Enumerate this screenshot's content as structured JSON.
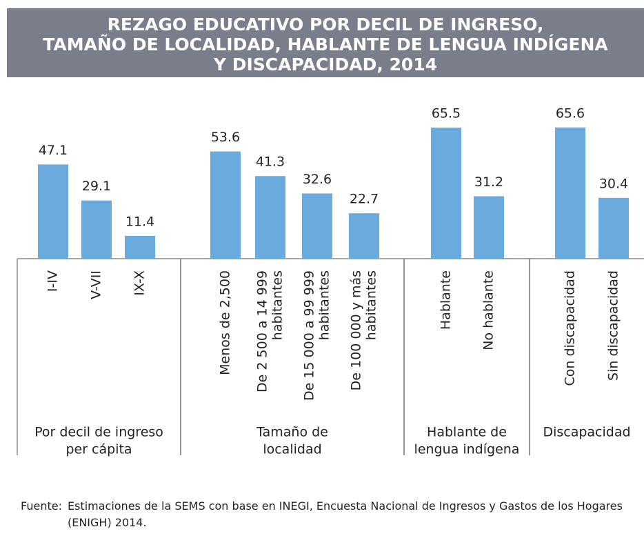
{
  "chart_data": {
    "type": "bar",
    "title": [
      "REZAGO EDUCATIVO POR DECIL DE INGRESO,",
      "TAMAÑO DE LOCALIDAD, HABLANTE DE LENGUA INDÍGENA",
      "Y DISCAPACIDAD, 2014"
    ],
    "color": "#6aaadc",
    "groups": [
      {
        "name": [
          "Por decil de ingreso",
          "per cápita"
        ],
        "categories": [
          [
            "I-IV"
          ],
          [
            "V-VII"
          ],
          [
            "IX-X"
          ]
        ],
        "values": [
          47.1,
          29.1,
          11.4
        ]
      },
      {
        "name": [
          "Tamaño de",
          "localidad"
        ],
        "categories": [
          [
            "Menos de 2,500"
          ],
          [
            "De 2 500 a 14 999",
            "habitantes"
          ],
          [
            "De 15 000 a 99 999",
            "habitantes"
          ],
          [
            "De 100 000 y más",
            "habitantes"
          ]
        ],
        "values": [
          53.6,
          41.3,
          32.6,
          22.7
        ]
      },
      {
        "name": [
          "Hablante de",
          "lengua indígena"
        ],
        "categories": [
          [
            "Hablante"
          ],
          [
            "No hablante"
          ]
        ],
        "values": [
          65.5,
          31.2
        ]
      },
      {
        "name": [
          "Discapacidad"
        ],
        "categories": [
          [
            "Con discapacidad"
          ],
          [
            "Sin discapacidad"
          ]
        ],
        "values": [
          65.6,
          30.4
        ]
      }
    ],
    "source": {
      "label": "Fuente:",
      "text": "Estimaciones de la SEMS con base en INEGI, Encuesta Nacional de Ingresos y Gastos de los Hogares (ENIGH) 2014."
    }
  }
}
